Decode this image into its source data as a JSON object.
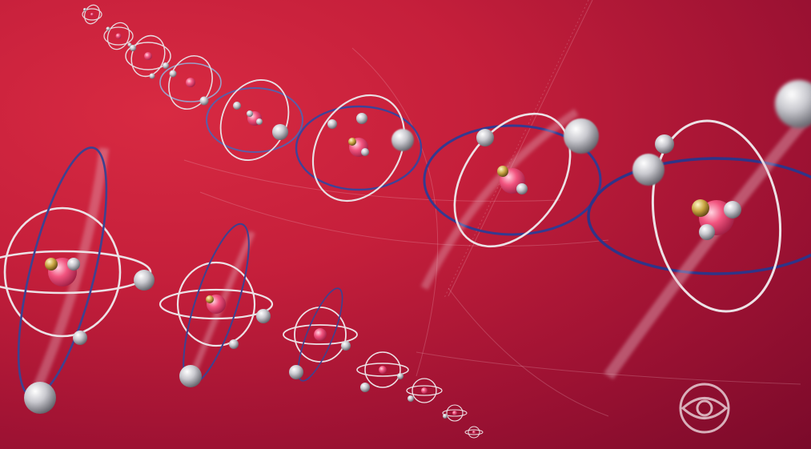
{
  "scene": {
    "subject": "atom-models",
    "background_color": "#b81a38"
  },
  "watermark": {
    "logo": "cbs-eye-logo"
  }
}
